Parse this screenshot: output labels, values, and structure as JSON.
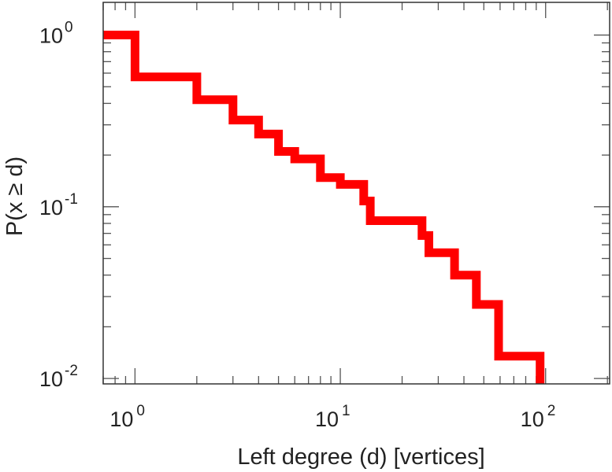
{
  "chart_data": {
    "type": "line",
    "subtype": "step-ccdf",
    "title": "",
    "xlabel": "Left degree (d) [vertices]",
    "ylabel": "P(x ≥ d)",
    "xscale": "log",
    "yscale": "log",
    "xlim": [
      0.7,
      205
    ],
    "ylim": [
      0.0093,
      1.55
    ],
    "grid": false,
    "color": "#ff0000",
    "xticks": [
      {
        "value": 1,
        "base": "10",
        "exp": "0"
      },
      {
        "value": 10,
        "base": "10",
        "exp": "1"
      },
      {
        "value": 100,
        "base": "10",
        "exp": "2"
      }
    ],
    "yticks": [
      {
        "value": 1,
        "base": "10",
        "exp": "0"
      },
      {
        "value": 0.1,
        "base": "10",
        "exp": "-1"
      },
      {
        "value": 0.01,
        "base": "10",
        "exp": "-2"
      }
    ],
    "series": [
      {
        "x": [
          0.7,
          1,
          1,
          2,
          2,
          3,
          3,
          4,
          4,
          5,
          5,
          6,
          6,
          8,
          8,
          10,
          10,
          13,
          13,
          14,
          14,
          25,
          25,
          27,
          27,
          36,
          36,
          46,
          46,
          59,
          59,
          94,
          94
        ],
        "y": [
          1.0,
          1.0,
          0.57,
          0.57,
          0.42,
          0.42,
          0.32,
          0.32,
          0.265,
          0.265,
          0.21,
          0.21,
          0.19,
          0.19,
          0.148,
          0.148,
          0.135,
          0.135,
          0.108,
          0.108,
          0.083,
          0.083,
          0.068,
          0.068,
          0.054,
          0.054,
          0.04,
          0.04,
          0.027,
          0.027,
          0.0135,
          0.0135,
          0.0093
        ]
      }
    ]
  }
}
